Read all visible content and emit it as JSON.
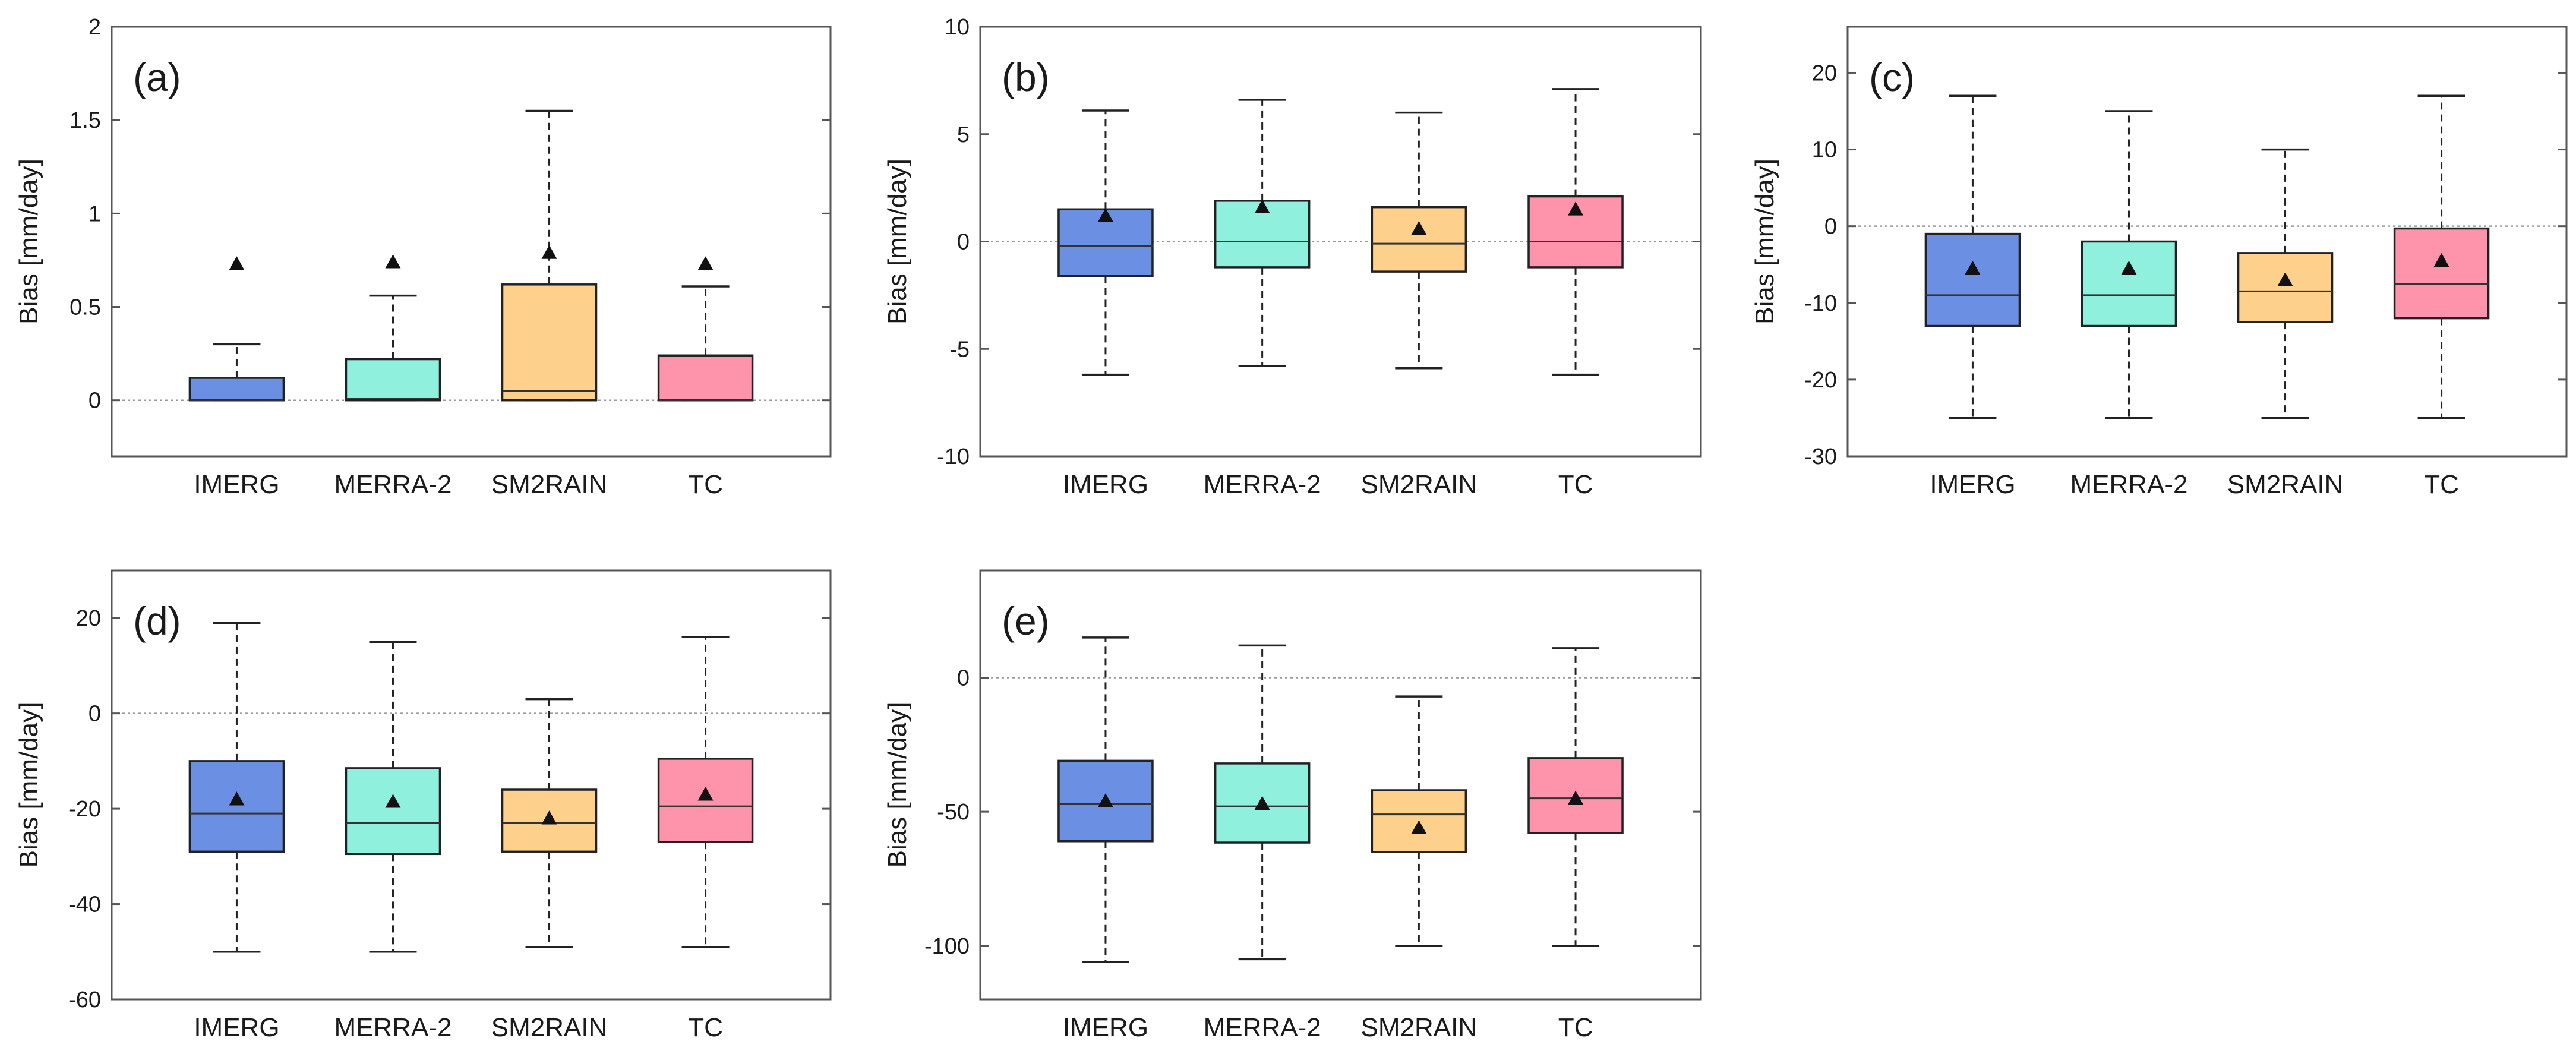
{
  "figure": {
    "ylabel": "Bias [mm/day]"
  },
  "colors": {
    "IMERG": "#6b8fe3",
    "MERRA-2": "#8ff0de",
    "SM2RAIN": "#fdd08c",
    "TC": "#fd94ac",
    "frame": "#555555",
    "zero_line": "#999999"
  },
  "chart_data": [
    {
      "type": "box",
      "label": "(a)",
      "ylabel": "Bias [mm/day]",
      "categories": [
        "IMERG",
        "MERRA-2",
        "SM2RAIN",
        "TC"
      ],
      "ylim": [
        -0.3,
        2
      ],
      "yticks": [
        0,
        0.5,
        1,
        1.5,
        2
      ],
      "ytick_labels": [
        "0",
        "0.5",
        "1",
        "1.5",
        "2"
      ],
      "series": [
        {
          "name": "IMERG",
          "whisker_low": 0,
          "q1": 0,
          "median": 0,
          "q3": 0.12,
          "whisker_high": 0.3,
          "mean": 0.73
        },
        {
          "name": "MERRA-2",
          "whisker_low": 0,
          "q1": 0,
          "median": 0.01,
          "q3": 0.22,
          "whisker_high": 0.56,
          "mean": 0.74
        },
        {
          "name": "SM2RAIN",
          "whisker_low": 0,
          "q1": 0,
          "median": 0.05,
          "q3": 0.62,
          "whisker_high": 1.55,
          "mean": 0.79
        },
        {
          "name": "TC",
          "whisker_low": 0,
          "q1": 0,
          "median": 0,
          "q3": 0.24,
          "whisker_high": 0.61,
          "mean": 0.73
        }
      ]
    },
    {
      "type": "box",
      "label": "(b)",
      "ylabel": "Bias [mm/day]",
      "categories": [
        "IMERG",
        "MERRA-2",
        "SM2RAIN",
        "TC"
      ],
      "ylim": [
        -10,
        10
      ],
      "yticks": [
        -10,
        -5,
        0,
        5,
        10
      ],
      "ytick_labels": [
        "-10",
        "-5",
        "0",
        "5",
        "10"
      ],
      "series": [
        {
          "name": "IMERG",
          "whisker_low": -6.2,
          "q1": -1.6,
          "median": -0.2,
          "q3": 1.5,
          "whisker_high": 6.1,
          "mean": 1.2
        },
        {
          "name": "MERRA-2",
          "whisker_low": -5.8,
          "q1": -1.2,
          "median": 0,
          "q3": 1.9,
          "whisker_high": 6.6,
          "mean": 1.6
        },
        {
          "name": "SM2RAIN",
          "whisker_low": -5.9,
          "q1": -1.4,
          "median": -0.1,
          "q3": 1.6,
          "whisker_high": 6.0,
          "mean": 0.6
        },
        {
          "name": "TC",
          "whisker_low": -6.2,
          "q1": -1.2,
          "median": 0,
          "q3": 2.1,
          "whisker_high": 7.1,
          "mean": 1.5
        }
      ]
    },
    {
      "type": "box",
      "label": "(c)",
      "ylabel": "Bias [mm/day]",
      "categories": [
        "IMERG",
        "MERRA-2",
        "SM2RAIN",
        "TC"
      ],
      "ylim": [
        -30,
        26
      ],
      "yticks": [
        -30,
        -20,
        -10,
        0,
        10,
        20
      ],
      "ytick_labels": [
        "-30",
        "-20",
        "-10",
        "0",
        "10",
        "20"
      ],
      "series": [
        {
          "name": "IMERG",
          "whisker_low": -25,
          "q1": -13,
          "median": -9,
          "q3": -1,
          "whisker_high": 17,
          "mean": -5.5
        },
        {
          "name": "MERRA-2",
          "whisker_low": -25,
          "q1": -13,
          "median": -9,
          "q3": -2,
          "whisker_high": 15,
          "mean": -5.5
        },
        {
          "name": "SM2RAIN",
          "whisker_low": -25,
          "q1": -12.5,
          "median": -8.5,
          "q3": -3.5,
          "whisker_high": 10,
          "mean": -7
        },
        {
          "name": "TC",
          "whisker_low": -25,
          "q1": -12,
          "median": -7.5,
          "q3": -0.3,
          "whisker_high": 17,
          "mean": -4.5
        }
      ]
    },
    {
      "type": "box",
      "label": "(d)",
      "ylabel": "Bias [mm/day]",
      "categories": [
        "IMERG",
        "MERRA-2",
        "SM2RAIN",
        "TC"
      ],
      "ylim": [
        -60,
        30
      ],
      "yticks": [
        -60,
        -40,
        -20,
        0,
        20
      ],
      "ytick_labels": [
        "-60",
        "-40",
        "-20",
        "0",
        "20"
      ],
      "series": [
        {
          "name": "IMERG",
          "whisker_low": -50,
          "q1": -29,
          "median": -21,
          "q3": -10,
          "whisker_high": 19,
          "mean": -18
        },
        {
          "name": "MERRA-2",
          "whisker_low": -50,
          "q1": -29.5,
          "median": -23,
          "q3": -11.5,
          "whisker_high": 15,
          "mean": -18.5
        },
        {
          "name": "SM2RAIN",
          "whisker_low": -49,
          "q1": -29,
          "median": -23,
          "q3": -16,
          "whisker_high": 3,
          "mean": -22
        },
        {
          "name": "TC",
          "whisker_low": -49,
          "q1": -27,
          "median": -19.5,
          "q3": -9.5,
          "whisker_high": 16,
          "mean": -17
        }
      ]
    },
    {
      "type": "box",
      "label": "(e)",
      "ylabel": "Bias [mm/day]",
      "categories": [
        "IMERG",
        "MERRA-2",
        "SM2RAIN",
        "TC"
      ],
      "ylim": [
        -120,
        40
      ],
      "yticks": [
        -100,
        -50,
        0
      ],
      "ytick_labels": [
        "-100",
        "-50",
        "0"
      ],
      "series": [
        {
          "name": "IMERG",
          "whisker_low": -106,
          "q1": -61,
          "median": -47,
          "q3": -31,
          "whisker_high": 15,
          "mean": -46
        },
        {
          "name": "MERRA-2",
          "whisker_low": -105,
          "q1": -61.5,
          "median": -48,
          "q3": -32,
          "whisker_high": 12,
          "mean": -47
        },
        {
          "name": "SM2RAIN",
          "whisker_low": -100,
          "q1": -65,
          "median": -51,
          "q3": -42,
          "whisker_high": -7,
          "mean": -56
        },
        {
          "name": "TC",
          "whisker_low": -100,
          "q1": -58,
          "median": -45,
          "q3": -30,
          "whisker_high": 11,
          "mean": -45
        }
      ]
    }
  ]
}
